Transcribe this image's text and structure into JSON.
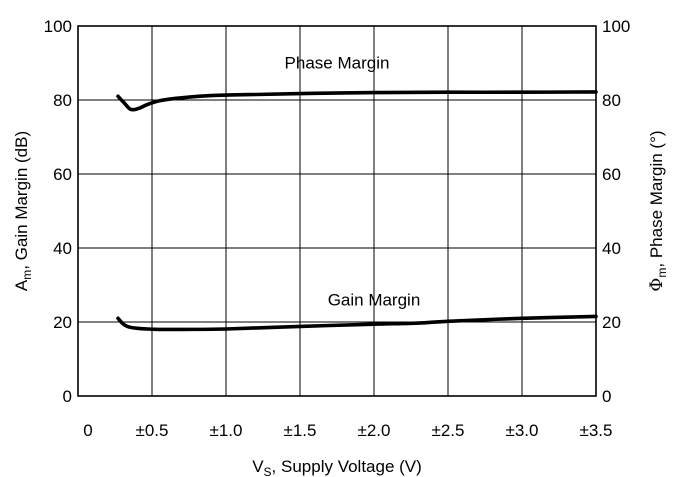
{
  "chart_data": {
    "type": "line",
    "xlabel": {
      "prefix": "V",
      "sub": "S",
      "suffix": ", Supply Voltage (V)"
    },
    "ylabel_left": {
      "prefix": "A",
      "sub": "m",
      "suffix": ", Gain Margin (dB)"
    },
    "ylabel_right": {
      "prefix": "Φ",
      "sub": "m",
      "suffix": ", Phase Margin (°)"
    },
    "xlim": [
      0,
      3.5
    ],
    "ylim_left": [
      0,
      100
    ],
    "ylim_right": [
      0,
      100
    ],
    "x_ticks": [
      0,
      0.5,
      1.0,
      1.5,
      2.0,
      2.5,
      3.0,
      3.5
    ],
    "x_tick_labels": [
      "0",
      "±0.5",
      "±1.0",
      "±1.5",
      "±2.0",
      "±2.5",
      "±3.0",
      "±3.5"
    ],
    "y_ticks": [
      0,
      20,
      40,
      60,
      80,
      100
    ],
    "y_tick_labels_left": [
      "0",
      "20",
      "40",
      "60",
      "80",
      "100"
    ],
    "y_tick_labels_right": [
      "0",
      "20",
      "40",
      "60",
      "80",
      "100"
    ],
    "grid": true,
    "series": [
      {
        "name": "Phase Margin",
        "x": [
          0.27,
          0.31,
          0.35,
          0.38,
          0.42,
          0.47,
          0.55,
          0.7,
          0.9,
          1.2,
          1.6,
          2.0,
          2.5,
          3.0,
          3.5
        ],
        "values": [
          81,
          79.3,
          77.6,
          77.4,
          77.9,
          78.8,
          79.8,
          80.6,
          81.2,
          81.5,
          81.8,
          82.0,
          82.1,
          82.1,
          82.2
        ]
      },
      {
        "name": "Gain Margin",
        "x": [
          0.27,
          0.31,
          0.35,
          0.4,
          0.47,
          0.55,
          0.7,
          1.0,
          1.5,
          2.0,
          2.3,
          2.5,
          3.0,
          3.5
        ],
        "values": [
          21,
          19.3,
          18.6,
          18.3,
          18.1,
          18.0,
          18.0,
          18.1,
          18.8,
          19.4,
          19.7,
          20.2,
          21.0,
          21.5
        ]
      }
    ]
  }
}
